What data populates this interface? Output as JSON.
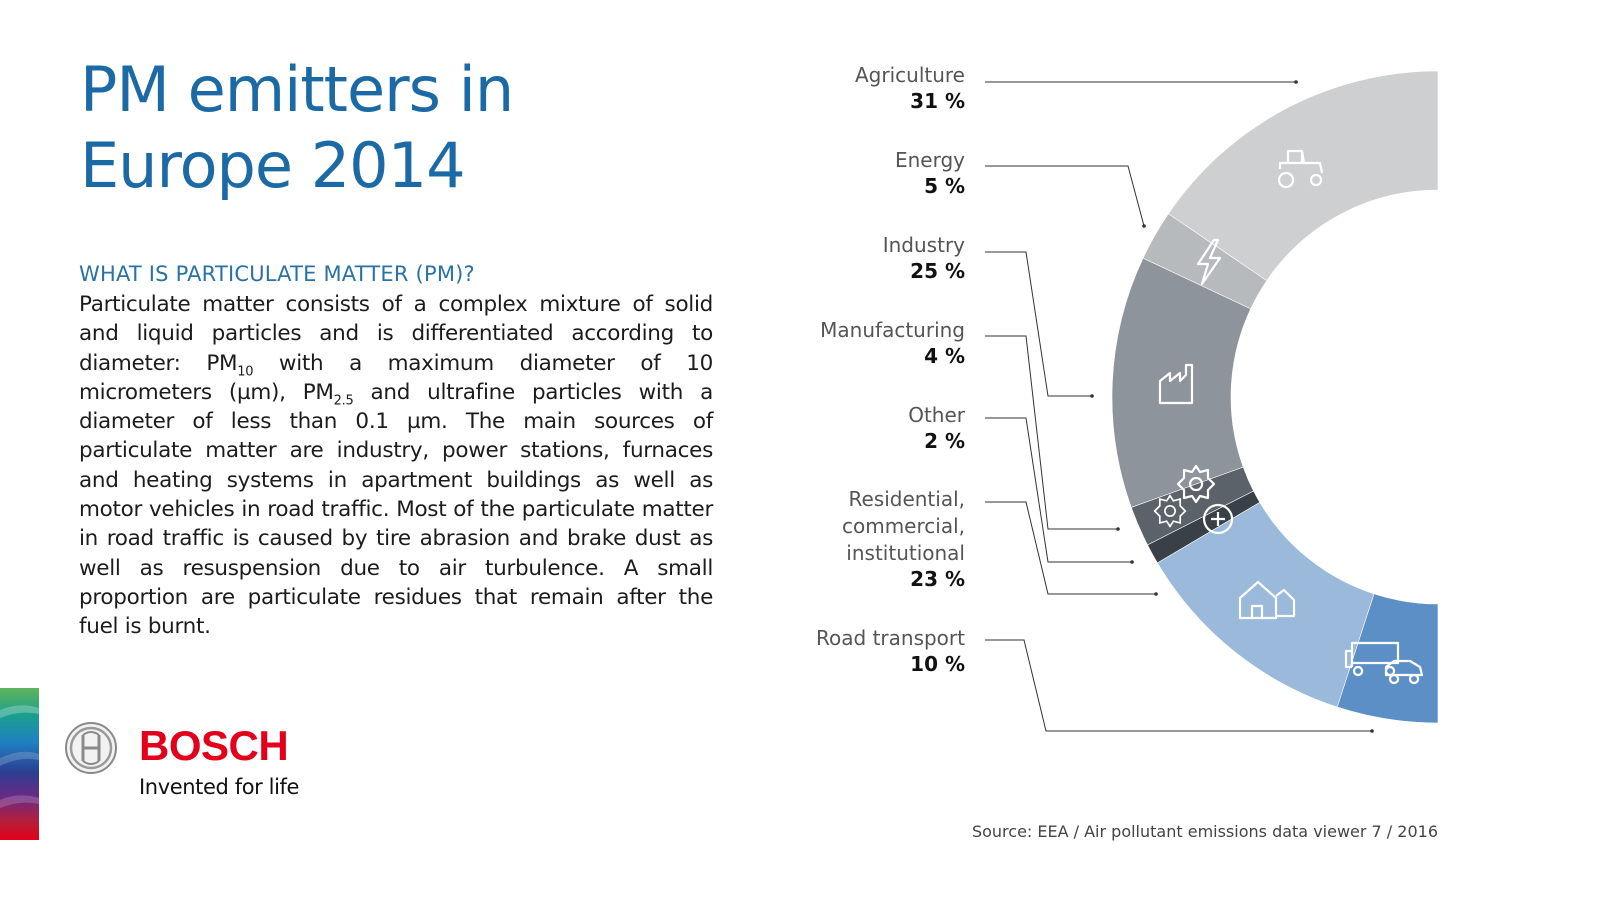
{
  "title_line1": "PM emitters in",
  "title_line2": "Europe 2014",
  "subheading": "WHAT IS PARTICULATE MATTER (PM)?",
  "body": {
    "p1": "Particulate matter consists of a complex mixture of solid and liquid particles and is differentiated according to diameter: PM",
    "sub1": "10",
    "p2": " with a maximum diameter of 10 micrometers (µm), PM",
    "sub2": "2.5",
    "p3": " and ultrafine particles with a diameter of less than 0.1 µm. The main sources of particulate matter are industry, power stations, furnaces and heating systems in apartment buildings as well as motor vehicles in road traffic. Most of the particulate matter in road traffic is caused by tire abrasion and brake dust as well as resuspension due to air turbulence. A small proportion are particulate residues that remain after the fuel is burnt."
  },
  "brand": {
    "name": "BOSCH",
    "slogan": "Invented for life"
  },
  "source": "Source: EEA / Air pollutant emissions data viewer 7 / 2016",
  "chart_data": {
    "type": "pie",
    "style": "half-donut",
    "categories": [
      "Agriculture",
      "Energy",
      "Industry",
      "Manufacturing",
      "Other",
      "Residential, commercial, institutional",
      "Road transport"
    ],
    "label_lines": [
      [
        "Agriculture"
      ],
      [
        "Energy"
      ],
      [
        "Industry"
      ],
      [
        "Manufacturing"
      ],
      [
        "Other"
      ],
      [
        "Residential,",
        "commercial,",
        "institutional"
      ],
      [
        "Road transport"
      ]
    ],
    "values": [
      31,
      5,
      25,
      4,
      2,
      23,
      10
    ],
    "value_labels": [
      "31 %",
      "5 %",
      "25 %",
      "4 %",
      "2 %",
      "23 %",
      "10 %"
    ],
    "unit": "%",
    "colors": [
      "#cdcfd1",
      "#b7babd",
      "#8e949b",
      "#5b626a",
      "#3a4047",
      "#9ab9db",
      "#5b8fc6"
    ],
    "icons": [
      "tractor-icon",
      "lightning-icon",
      "factory-icon",
      "gear-icon",
      "gear-plus-icon",
      "house-icon",
      "truck-car-icon"
    ],
    "legend": "left"
  }
}
